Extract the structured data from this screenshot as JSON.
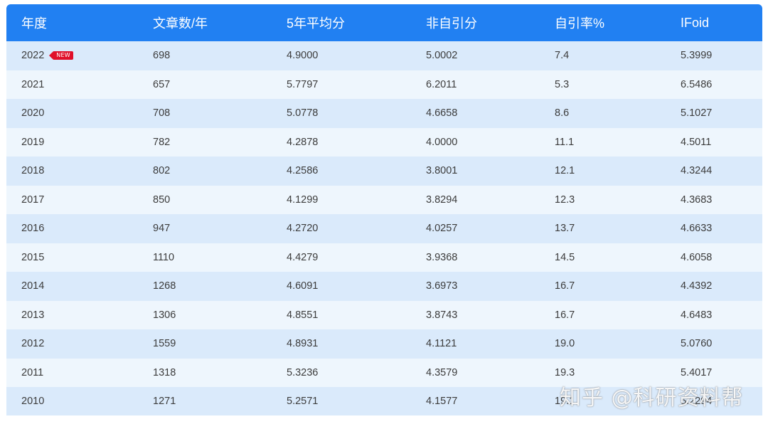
{
  "table": {
    "headers": [
      "年度",
      "文章数/年",
      "5年平均分",
      "非自引分",
      "自引率%",
      "IFoid"
    ],
    "new_badge": "NEW",
    "rows": [
      [
        "2022",
        "698",
        "4.9000",
        "5.0002",
        "7.4",
        "5.3999"
      ],
      [
        "2021",
        "657",
        "5.7797",
        "6.2011",
        "5.3",
        "6.5486"
      ],
      [
        "2020",
        "708",
        "5.0778",
        "4.6658",
        "8.6",
        "5.1027"
      ],
      [
        "2019",
        "782",
        "4.2878",
        "4.0000",
        "11.1",
        "4.5011"
      ],
      [
        "2018",
        "802",
        "4.2586",
        "3.8001",
        "12.1",
        "4.3244"
      ],
      [
        "2017",
        "850",
        "4.1299",
        "3.8294",
        "12.3",
        "4.3683"
      ],
      [
        "2016",
        "947",
        "4.2720",
        "4.0257",
        "13.7",
        "4.6633"
      ],
      [
        "2015",
        "1110",
        "4.4279",
        "3.9368",
        "14.5",
        "4.6058"
      ],
      [
        "2014",
        "1268",
        "4.6091",
        "3.6973",
        "16.7",
        "4.4392"
      ],
      [
        "2013",
        "1306",
        "4.8551",
        "3.8743",
        "16.7",
        "4.6483"
      ],
      [
        "2012",
        "1559",
        "4.8931",
        "4.1121",
        "19.0",
        "5.0760"
      ],
      [
        "2011",
        "1318",
        "5.3236",
        "4.3579",
        "19.3",
        "5.4017"
      ],
      [
        "2010",
        "1271",
        "5.2571",
        "4.1577",
        "19.1",
        "5.2294"
      ]
    ]
  },
  "watermark": "知乎 @科研资料帮",
  "colors": {
    "header_bg": "#2180f2",
    "row_odd": "#daeafb",
    "row_even": "#eef6fd",
    "badge": "#e0102a"
  }
}
